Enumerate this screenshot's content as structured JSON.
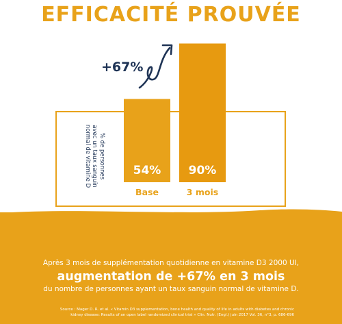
{
  "headline": "EFFICACITÉ PROUVÉE",
  "colors": {
    "accent": "#e8a21a",
    "bar_base": "#e8a21a",
    "bar_3mois": "#e79a10",
    "navy": "#1e3355",
    "white": "#ffffff"
  },
  "arrow_icon": "curved-arrow-up-right-icon",
  "chart_data": {
    "type": "bar",
    "categories": [
      "Base",
      "3 mois"
    ],
    "values": [
      54,
      90
    ],
    "value_labels": [
      "54%",
      "90%"
    ],
    "ylabel_lines": [
      "% de personnes",
      "avec un taux sanguin",
      "normal de vitamine D"
    ],
    "annotation": "+67%",
    "ylim": [
      0,
      100
    ]
  },
  "summary": {
    "line1": "Après 3 mois de supplémentation quotidienne en vitamine D3 2000 UI,",
    "line2": "augmentation de +67% en 3 mois",
    "line3": "du nombre de personnes ayant un taux sanguin normal de vitamine D."
  },
  "source": {
    "line1": "Source : Mager D. R. et al. « Vitamin D3 supplementation, bone health and quality of life in adults with diabetes and chronic",
    "line2": "kidney disease: Results of an open label randomized clinical trial » Clin. Nutr. (Engl.) juin 2017 Vol. 36, n°3, p. 686-696"
  }
}
